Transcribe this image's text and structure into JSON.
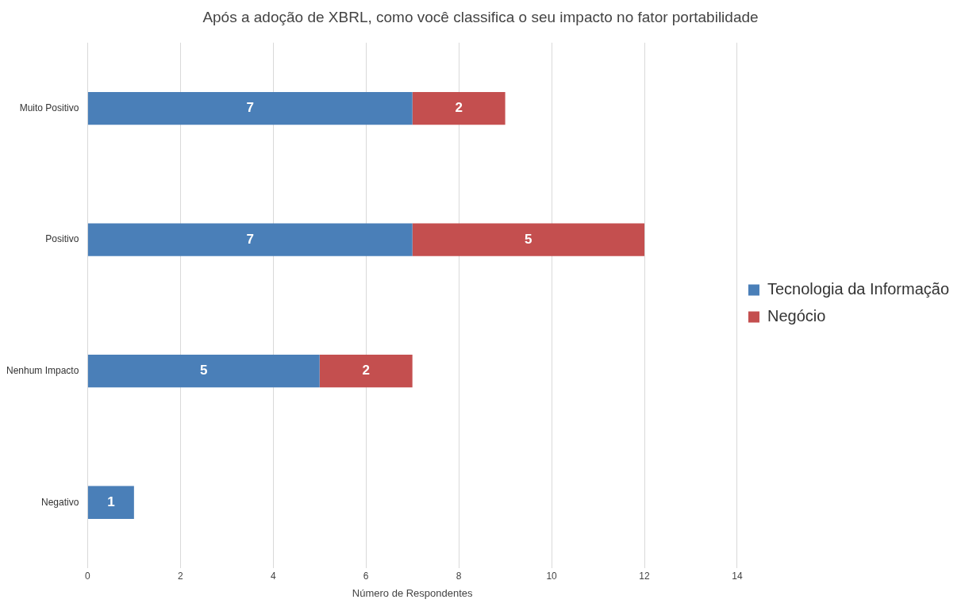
{
  "chart_data": {
    "type": "bar",
    "orientation": "horizontal",
    "stacked": true,
    "title": "Após a adoção de XBRL, como você classifica o seu impacto no fator portabilidade",
    "xlabel": "Número de Respondentes",
    "categories": [
      "Muito Positivo",
      "Positivo",
      "Nenhum Impacto",
      "Negativo"
    ],
    "series": [
      {
        "name": "Tecnologia da Informação",
        "color": "#4a7fb8",
        "values": [
          7,
          7,
          5,
          1
        ]
      },
      {
        "name": "Negócio",
        "color": "#c44f4f",
        "values": [
          2,
          5,
          2,
          null
        ]
      }
    ],
    "xlim": [
      0,
      14
    ],
    "xticks": [
      0,
      2,
      4,
      6,
      8,
      10,
      12,
      14
    ],
    "grid": "x",
    "legend": "right",
    "data_labels": true
  }
}
